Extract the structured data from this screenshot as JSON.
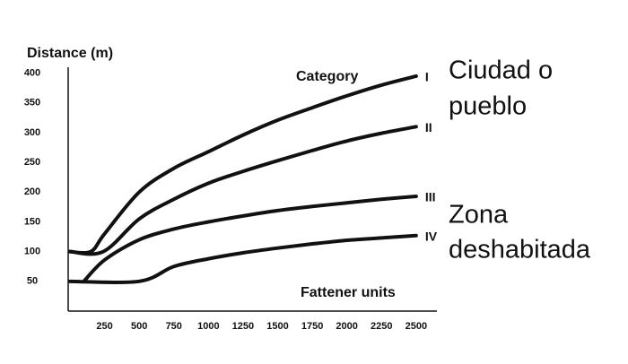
{
  "chart_data": {
    "type": "line",
    "y_label": "Distance (m)",
    "annotations": [
      "Category",
      "Fattener units",
      "Ciudad o",
      "pueblo",
      "Zona",
      "deshabitada"
    ],
    "xlim": [
      0,
      2650
    ],
    "ylim": [
      0,
      410
    ],
    "xticks": [
      250,
      500,
      750,
      1000,
      1250,
      1500,
      1750,
      2000,
      2250,
      2500
    ],
    "yticks": [
      50,
      100,
      150,
      200,
      250,
      300,
      350,
      400
    ],
    "grid": false,
    "series": [
      {
        "name": "I",
        "color": "#111111",
        "x": [
          0,
          150,
          250,
          500,
          750,
          1000,
          1250,
          1500,
          1750,
          2000,
          2250,
          2500
        ],
        "values": [
          100,
          100,
          130,
          200,
          240,
          268,
          296,
          321,
          342,
          362,
          380,
          395
        ]
      },
      {
        "name": "II",
        "color": "#111111",
        "x": [
          0,
          240,
          500,
          750,
          1000,
          1250,
          1500,
          1750,
          2000,
          2250,
          2500
        ],
        "values": [
          100,
          100,
          155,
          188,
          215,
          235,
          253,
          270,
          286,
          299,
          310
        ]
      },
      {
        "name": "III",
        "color": "#111111",
        "x": [
          100,
          250,
          500,
          750,
          1000,
          1250,
          1500,
          1750,
          2000,
          2250,
          2500
        ],
        "values": [
          50,
          86,
          120,
          138,
          150,
          160,
          169,
          176,
          182,
          188,
          193
        ]
      },
      {
        "name": "IV",
        "color": "#111111",
        "x": [
          0,
          500,
          750,
          1000,
          1250,
          1500,
          1750,
          2000,
          2250,
          2500
        ],
        "values": [
          50,
          50,
          75,
          88,
          98,
          106,
          113,
          119,
          123,
          127
        ]
      }
    ]
  }
}
